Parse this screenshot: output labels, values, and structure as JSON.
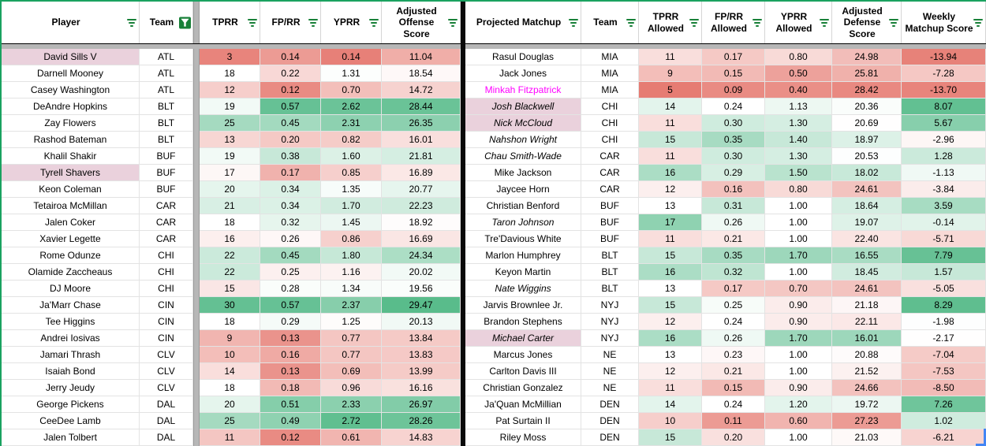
{
  "colors": {
    "heat_red": "#e67c73",
    "heat_green": "#57bb8a",
    "row_highlight_pink": "#ead1dc",
    "magenta_text": "#ff00ff",
    "filter_icon_green": "#188038",
    "range_border_green": "#1aa260",
    "hidden_band_gray": "#b7b7b7",
    "table_divider_black": "#0a0a0a",
    "selection_blue": "#4285f4"
  },
  "left_table": {
    "header_labels": [
      "Player",
      "Team",
      "TPRR",
      "FP/RR",
      "YPRR",
      "Adjusted Offense Score"
    ],
    "team_filter_active": true,
    "rows": [
      {
        "player": "David Sills V",
        "team": "ATL",
        "tprr": "3",
        "fprr": "0.14",
        "yprr": "0.14",
        "score": "11.04",
        "name_style": "pink"
      },
      {
        "player": "Darnell Mooney",
        "team": "ATL",
        "tprr": "18",
        "fprr": "0.22",
        "yprr": "1.31",
        "score": "18.54",
        "name_style": ""
      },
      {
        "player": "Casey Washington",
        "team": "ATL",
        "tprr": "12",
        "fprr": "0.12",
        "yprr": "0.70",
        "score": "14.72",
        "name_style": ""
      },
      {
        "player": "DeAndre Hopkins",
        "team": "BLT",
        "tprr": "19",
        "fprr": "0.57",
        "yprr": "2.62",
        "score": "28.44",
        "name_style": ""
      },
      {
        "player": "Zay Flowers",
        "team": "BLT",
        "tprr": "25",
        "fprr": "0.45",
        "yprr": "2.31",
        "score": "26.35",
        "name_style": ""
      },
      {
        "player": "Rashod Bateman",
        "team": "BLT",
        "tprr": "13",
        "fprr": "0.20",
        "yprr": "0.82",
        "score": "16.01",
        "name_style": ""
      },
      {
        "player": "Khalil Shakir",
        "team": "BUF",
        "tprr": "19",
        "fprr": "0.38",
        "yprr": "1.60",
        "score": "21.81",
        "name_style": ""
      },
      {
        "player": "Tyrell Shavers",
        "team": "BUF",
        "tprr": "17",
        "fprr": "0.17",
        "yprr": "0.85",
        "score": "16.89",
        "name_style": "pink"
      },
      {
        "player": "Keon Coleman",
        "team": "BUF",
        "tprr": "20",
        "fprr": "0.34",
        "yprr": "1.35",
        "score": "20.77",
        "name_style": ""
      },
      {
        "player": "Tetairoa McMillan",
        "team": "CAR",
        "tprr": "21",
        "fprr": "0.34",
        "yprr": "1.70",
        "score": "22.23",
        "name_style": ""
      },
      {
        "player": "Jalen Coker",
        "team": "CAR",
        "tprr": "18",
        "fprr": "0.32",
        "yprr": "1.45",
        "score": "18.92",
        "name_style": ""
      },
      {
        "player": "Xavier Legette",
        "team": "CAR",
        "tprr": "16",
        "fprr": "0.26",
        "yprr": "0.86",
        "score": "16.69",
        "name_style": ""
      },
      {
        "player": "Rome Odunze",
        "team": "CHI",
        "tprr": "22",
        "fprr": "0.45",
        "yprr": "1.80",
        "score": "24.34",
        "name_style": ""
      },
      {
        "player": "Olamide Zaccheaus",
        "team": "CHI",
        "tprr": "22",
        "fprr": "0.25",
        "yprr": "1.16",
        "score": "20.02",
        "name_style": ""
      },
      {
        "player": "DJ Moore",
        "team": "CHI",
        "tprr": "15",
        "fprr": "0.28",
        "yprr": "1.34",
        "score": "19.56",
        "name_style": ""
      },
      {
        "player": "Ja'Marr Chase",
        "team": "CIN",
        "tprr": "30",
        "fprr": "0.57",
        "yprr": "2.37",
        "score": "29.47",
        "name_style": ""
      },
      {
        "player": "Tee Higgins",
        "team": "CIN",
        "tprr": "18",
        "fprr": "0.29",
        "yprr": "1.25",
        "score": "20.13",
        "name_style": ""
      },
      {
        "player": "Andrei Iosivas",
        "team": "CIN",
        "tprr": "9",
        "fprr": "0.13",
        "yprr": "0.77",
        "score": "13.84",
        "name_style": ""
      },
      {
        "player": "Jamari Thrash",
        "team": "CLV",
        "tprr": "10",
        "fprr": "0.16",
        "yprr": "0.77",
        "score": "13.83",
        "name_style": ""
      },
      {
        "player": "Isaiah Bond",
        "team": "CLV",
        "tprr": "14",
        "fprr": "0.13",
        "yprr": "0.69",
        "score": "13.99",
        "name_style": ""
      },
      {
        "player": "Jerry Jeudy",
        "team": "CLV",
        "tprr": "18",
        "fprr": "0.18",
        "yprr": "0.96",
        "score": "16.16",
        "name_style": ""
      },
      {
        "player": "George Pickens",
        "team": "DAL",
        "tprr": "20",
        "fprr": "0.51",
        "yprr": "2.33",
        "score": "26.97",
        "name_style": ""
      },
      {
        "player": "CeeDee Lamb",
        "team": "DAL",
        "tprr": "25",
        "fprr": "0.49",
        "yprr": "2.72",
        "score": "28.26",
        "name_style": ""
      },
      {
        "player": "Jalen Tolbert",
        "team": "DAL",
        "tprr": "11",
        "fprr": "0.12",
        "yprr": "0.61",
        "score": "14.83",
        "name_style": ""
      }
    ]
  },
  "right_table": {
    "header_labels": [
      "Projected Matchup",
      "Team",
      "TPRR Allowed",
      "FP/RR Allowed",
      "YPRR Allowed",
      "Adjusted Defense Score",
      "Weekly Matchup Score"
    ],
    "rows": [
      {
        "player": "Rasul Douglas",
        "team": "MIA",
        "tprr": "11",
        "fprr": "0.17",
        "yprr": "0.80",
        "def": "24.98",
        "weekly": "-13.94",
        "name_style": ""
      },
      {
        "player": "Jack Jones",
        "team": "MIA",
        "tprr": "9",
        "fprr": "0.15",
        "yprr": "0.50",
        "def": "25.81",
        "weekly": "-7.28",
        "name_style": ""
      },
      {
        "player": "Minkah Fitzpatrick",
        "team": "MIA",
        "tprr": "5",
        "fprr": "0.09",
        "yprr": "0.40",
        "def": "28.42",
        "weekly": "-13.70",
        "name_style": "magenta"
      },
      {
        "player": "Josh Blackwell",
        "team": "CHI",
        "tprr": "14",
        "fprr": "0.24",
        "yprr": "1.13",
        "def": "20.36",
        "weekly": "8.07",
        "name_style": "italic-pink"
      },
      {
        "player": "Nick McCloud",
        "team": "CHI",
        "tprr": "11",
        "fprr": "0.30",
        "yprr": "1.30",
        "def": "20.69",
        "weekly": "5.67",
        "name_style": "italic-pink"
      },
      {
        "player": "Nahshon Wright",
        "team": "CHI",
        "tprr": "15",
        "fprr": "0.35",
        "yprr": "1.40",
        "def": "18.97",
        "weekly": "-2.96",
        "name_style": "italic"
      },
      {
        "player": "Chau Smith-Wade",
        "team": "CAR",
        "tprr": "11",
        "fprr": "0.30",
        "yprr": "1.30",
        "def": "20.53",
        "weekly": "1.28",
        "name_style": "italic"
      },
      {
        "player": "Mike Jackson",
        "team": "CAR",
        "tprr": "16",
        "fprr": "0.29",
        "yprr": "1.50",
        "def": "18.02",
        "weekly": "-1.13",
        "name_style": ""
      },
      {
        "player": "Jaycee Horn",
        "team": "CAR",
        "tprr": "12",
        "fprr": "0.16",
        "yprr": "0.80",
        "def": "24.61",
        "weekly": "-3.84",
        "name_style": ""
      },
      {
        "player": "Christian Benford",
        "team": "BUF",
        "tprr": "13",
        "fprr": "0.31",
        "yprr": "1.00",
        "def": "18.64",
        "weekly": "3.59",
        "name_style": ""
      },
      {
        "player": "Taron Johnson",
        "team": "BUF",
        "tprr": "17",
        "fprr": "0.26",
        "yprr": "1.00",
        "def": "19.07",
        "weekly": "-0.14",
        "name_style": "italic"
      },
      {
        "player": "Tre'Davious White",
        "team": "BUF",
        "tprr": "11",
        "fprr": "0.21",
        "yprr": "1.00",
        "def": "22.40",
        "weekly": "-5.71",
        "name_style": ""
      },
      {
        "player": "Marlon Humphrey",
        "team": "BLT",
        "tprr": "15",
        "fprr": "0.35",
        "yprr": "1.70",
        "def": "16.55",
        "weekly": "7.79",
        "name_style": ""
      },
      {
        "player": "Keyon Martin",
        "team": "BLT",
        "tprr": "16",
        "fprr": "0.32",
        "yprr": "1.00",
        "def": "18.45",
        "weekly": "1.57",
        "name_style": ""
      },
      {
        "player": "Nate Wiggins",
        "team": "BLT",
        "tprr": "13",
        "fprr": "0.17",
        "yprr": "0.70",
        "def": "24.61",
        "weekly": "-5.05",
        "name_style": "italic"
      },
      {
        "player": "Jarvis Brownlee Jr.",
        "team": "NYJ",
        "tprr": "15",
        "fprr": "0.25",
        "yprr": "0.90",
        "def": "21.18",
        "weekly": "8.29",
        "name_style": ""
      },
      {
        "player": "Brandon Stephens",
        "team": "NYJ",
        "tprr": "12",
        "fprr": "0.24",
        "yprr": "0.90",
        "def": "22.11",
        "weekly": "-1.98",
        "name_style": ""
      },
      {
        "player": "Michael Carter",
        "team": "NYJ",
        "tprr": "16",
        "fprr": "0.26",
        "yprr": "1.70",
        "def": "16.01",
        "weekly": "-2.17",
        "name_style": "italic-pink"
      },
      {
        "player": "Marcus Jones",
        "team": "NE",
        "tprr": "13",
        "fprr": "0.23",
        "yprr": "1.00",
        "def": "20.88",
        "weekly": "-7.04",
        "name_style": ""
      },
      {
        "player": "Carlton Davis III",
        "team": "NE",
        "tprr": "12",
        "fprr": "0.21",
        "yprr": "1.00",
        "def": "21.52",
        "weekly": "-7.53",
        "name_style": ""
      },
      {
        "player": "Christian Gonzalez",
        "team": "NE",
        "tprr": "11",
        "fprr": "0.15",
        "yprr": "0.90",
        "def": "24.66",
        "weekly": "-8.50",
        "name_style": ""
      },
      {
        "player": "Ja'Quan McMillian",
        "team": "DEN",
        "tprr": "14",
        "fprr": "0.24",
        "yprr": "1.20",
        "def": "19.72",
        "weekly": "7.26",
        "name_style": ""
      },
      {
        "player": "Pat Surtain II",
        "team": "DEN",
        "tprr": "10",
        "fprr": "0.11",
        "yprr": "0.60",
        "def": "27.23",
        "weekly": "1.02",
        "name_style": ""
      },
      {
        "player": "Riley Moss",
        "team": "DEN",
        "tprr": "15",
        "fprr": "0.20",
        "yprr": "1.00",
        "def": "21.03",
        "weekly": "-6.21",
        "name_style": ""
      }
    ]
  }
}
